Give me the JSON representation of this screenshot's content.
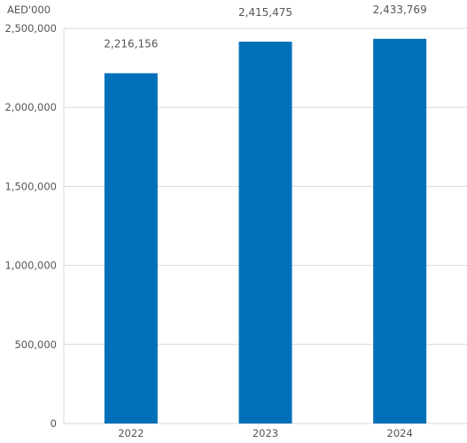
{
  "chart_data": {
    "type": "bar",
    "unit_label": "AED'000",
    "categories": [
      "2022",
      "2023",
      "2024"
    ],
    "values": [
      2216156,
      2415475,
      2433769
    ],
    "data_labels": [
      "2,216,156",
      "2,415,475",
      "2,433,769"
    ],
    "ylim": [
      0,
      2500000
    ],
    "yticks": [
      0,
      500000,
      1000000,
      1500000,
      2000000,
      2500000
    ],
    "ytick_labels": [
      "0",
      "500,000",
      "1,000,000",
      "1,500,000",
      "2,000,000",
      "2,500,000"
    ],
    "grid": true,
    "bar_color": "#0070b8",
    "grid_color": "#d9d9d9"
  }
}
